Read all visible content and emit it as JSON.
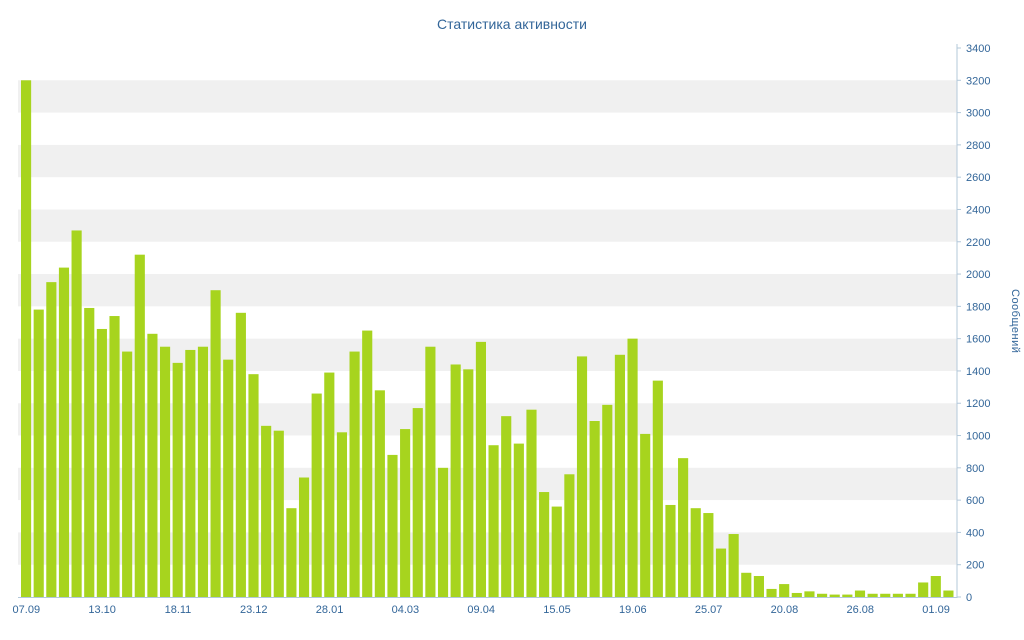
{
  "chart_data": {
    "type": "bar",
    "title": "Статистика активности",
    "ylabel": "Сообщений",
    "xlabel": "",
    "ylim": [
      0,
      3400
    ],
    "ytick_step": 200,
    "y_axis_side": "right",
    "grid": "horizontal-bands",
    "legend": "none",
    "x_tick_labels": [
      "07.09",
      "13.10",
      "18.11",
      "23.12",
      "28.01",
      "04.03",
      "09.04",
      "15.05",
      "19.06",
      "25.07",
      "20.08",
      "26.08",
      "01.09"
    ],
    "x_label_every": 6,
    "values": [
      3200,
      1780,
      1950,
      2040,
      2270,
      1790,
      1660,
      1740,
      1520,
      2120,
      1630,
      1550,
      1450,
      1530,
      1550,
      1900,
      1470,
      1760,
      1380,
      1060,
      1030,
      550,
      740,
      1260,
      1390,
      1020,
      1520,
      1650,
      1280,
      880,
      1040,
      1170,
      1550,
      800,
      1440,
      1410,
      1580,
      940,
      1120,
      950,
      1160,
      650,
      560,
      760,
      1490,
      1090,
      1190,
      1500,
      1600,
      1010,
      1340,
      570,
      860,
      550,
      520,
      300,
      390,
      150,
      130,
      50,
      80,
      25,
      35,
      20,
      15,
      15,
      40,
      20,
      20,
      20,
      20,
      90,
      130,
      40
    ],
    "colors": {
      "bar": "#a7d41e",
      "stripe": "#f0f0f0",
      "axis": "#b3c8da",
      "text": "#336699",
      "background": "#ffffff"
    }
  }
}
